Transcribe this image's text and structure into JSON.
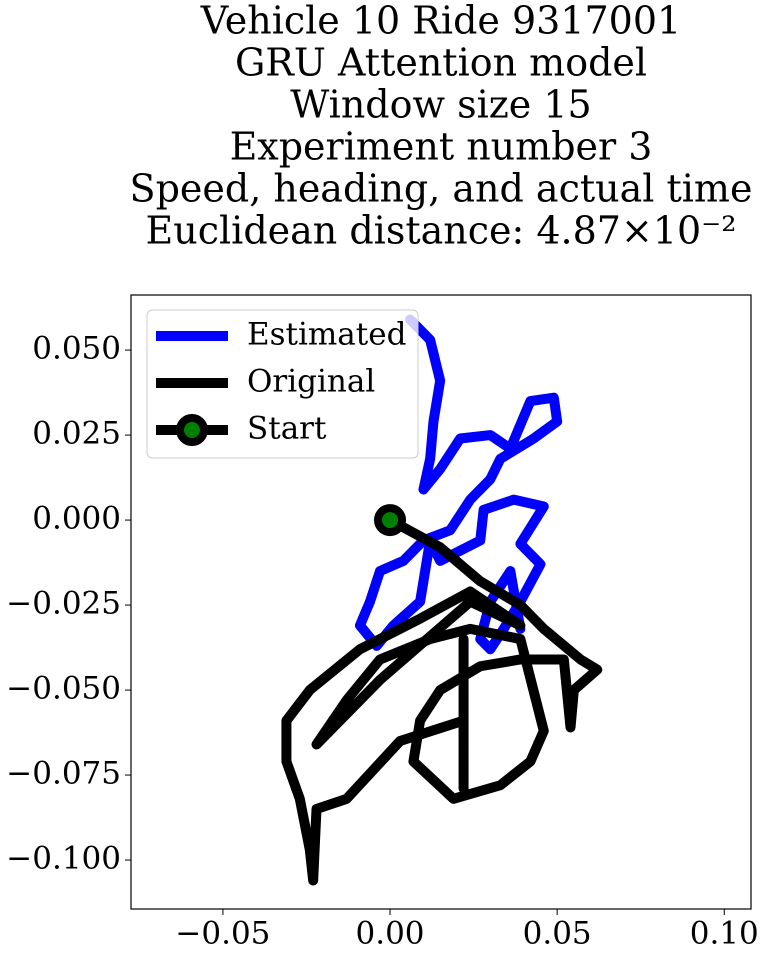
{
  "chart_data": {
    "type": "line",
    "title": [
      "Vehicle 10 Ride 9317001",
      "GRU Attention model",
      "Window size 15",
      "Experiment number 3",
      "Speed, heading, and actual time",
      "Euclidean distance: 4.87×10⁻²"
    ],
    "xlim": [
      -0.0775,
      0.108
    ],
    "ylim": [
      -0.1144,
      0.0662
    ],
    "xticks": [
      {
        "value": -0.05,
        "label": "−0.05"
      },
      {
        "value": 0,
        "label": "0.00"
      },
      {
        "value": 0.05,
        "label": "0.05"
      },
      {
        "value": 0.1,
        "label": "0.10"
      }
    ],
    "yticks": [
      {
        "value": 0.05,
        "label": "0.050"
      },
      {
        "value": 0.025,
        "label": "0.025"
      },
      {
        "value": 0,
        "label": "0.000"
      },
      {
        "value": -0.025,
        "label": "−0.025"
      },
      {
        "value": -0.05,
        "label": "−0.050"
      },
      {
        "value": -0.075,
        "label": "−0.075"
      },
      {
        "value": -0.1,
        "label": "−0.100"
      }
    ],
    "legend": "upper left",
    "series": [
      {
        "name": "Estimated",
        "color": "#0000ff",
        "x": [
          0.006,
          0.012,
          0.015,
          0.013,
          0.012,
          0.01,
          0.015,
          0.021,
          0.03,
          0.036,
          0.042,
          0.049,
          0.05,
          0.043,
          0.033,
          0.03,
          0.024,
          0.018,
          0.01,
          0.004,
          -0.003,
          -0.006,
          -0.009,
          -0.004,
          0.001,
          0.009,
          0.012,
          0.015,
          0.027,
          0.028,
          0.037,
          0.046,
          0.039,
          0.045,
          0.039,
          0.034,
          0.03,
          0.027,
          0.03,
          0.036,
          0.039
        ],
        "values": [
          0.059,
          0.053,
          0.041,
          0.029,
          0.018,
          0.009,
          0.015,
          0.024,
          0.025,
          0.021,
          0.035,
          0.036,
          0.029,
          0.024,
          0.018,
          0.012,
          0.006,
          -0.003,
          -0.006,
          -0.012,
          -0.015,
          -0.024,
          -0.031,
          -0.037,
          -0.031,
          -0.024,
          -0.006,
          -0.012,
          -0.006,
          0.003,
          0.006,
          0.004,
          -0.007,
          -0.013,
          -0.024,
          -0.032,
          -0.038,
          -0.035,
          -0.024,
          -0.015,
          -0.032
        ]
      },
      {
        "name": "Original",
        "color": "#000000",
        "x": [
          0,
          0.015,
          0.027,
          0.039,
          0.046,
          0.057,
          0.062,
          0.055,
          0.054,
          0.052,
          0.039,
          0.027,
          0.015,
          0.009,
          0.007,
          0.019,
          0.033,
          0.042,
          0.046,
          0.039,
          0.024,
          0.012,
          -0.003,
          -0.013,
          -0.022,
          -0.003,
          0.024,
          0.039,
          0.024,
          0.009,
          -0.009,
          -0.024,
          -0.031,
          -0.031,
          -0.027,
          -0.024,
          -0.023,
          -0.022,
          -0.013,
          0.003,
          0.022,
          0.022,
          0.022
        ],
        "values": [
          0,
          -0.008,
          -0.018,
          -0.025,
          -0.032,
          -0.041,
          -0.044,
          -0.05,
          -0.061,
          -0.041,
          -0.041,
          -0.043,
          -0.05,
          -0.059,
          -0.071,
          -0.082,
          -0.078,
          -0.071,
          -0.062,
          -0.035,
          -0.032,
          -0.035,
          -0.041,
          -0.053,
          -0.066,
          -0.047,
          -0.024,
          -0.031,
          -0.021,
          -0.029,
          -0.038,
          -0.05,
          -0.059,
          -0.071,
          -0.082,
          -0.097,
          -0.106,
          -0.085,
          -0.082,
          -0.065,
          -0.059,
          -0.035,
          -0.079
        ]
      },
      {
        "name": "Start",
        "color": "#000000",
        "marker_color": "#008000",
        "x": [
          0
        ],
        "values": [
          0
        ]
      }
    ]
  }
}
